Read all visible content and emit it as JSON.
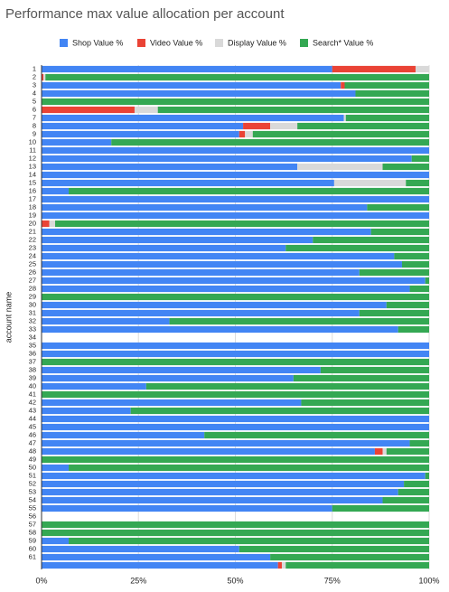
{
  "chart_data": {
    "type": "stacked-barh",
    "title": "Performance max value allocation per account",
    "y_label": "account name",
    "categories": [
      "1",
      "2",
      "3",
      "4",
      "5",
      "6",
      "7",
      "8",
      "9",
      "10",
      "11",
      "12",
      "13",
      "14",
      "15",
      "16",
      "17",
      "18",
      "19",
      "20",
      "21",
      "22",
      "23",
      "24",
      "25",
      "26",
      "27",
      "28",
      "29",
      "30",
      "31",
      "32",
      "33",
      "34",
      "35",
      "36",
      "37",
      "38",
      "39",
      "40",
      "41",
      "42",
      "43",
      "44",
      "45",
      "46",
      "47",
      "48",
      "49",
      "50",
      "51",
      "52",
      "53",
      "54",
      "55",
      "56",
      "57",
      "58",
      "59",
      "60",
      "61",
      null
    ],
    "series": [
      {
        "name": "Shop Value %",
        "color": "#4285f4",
        "values": [
          75,
          0,
          77.2,
          81,
          0,
          0,
          78,
          52,
          51,
          18,
          100,
          95.5,
          66,
          100,
          75.5,
          7,
          100,
          84,
          100,
          0,
          85,
          70,
          63,
          91,
          93,
          82,
          99,
          95,
          0,
          89,
          82,
          33,
          92,
          null,
          100,
          100,
          0,
          72,
          65,
          27,
          0,
          67,
          23,
          100,
          100,
          42,
          95,
          86,
          0,
          7,
          99,
          93.5,
          92,
          88,
          75,
          null,
          0,
          0,
          7,
          51,
          59,
          61
        ]
      },
      {
        "name": "Video Value %",
        "color": "#ea4335",
        "values": [
          21.5,
          0.5,
          1,
          0,
          0,
          24,
          0,
          7,
          1.5,
          0,
          0,
          0,
          0,
          0,
          0,
          0,
          0,
          0,
          0,
          2,
          0,
          0,
          0,
          0,
          0,
          0,
          0,
          0,
          0,
          0,
          0,
          0,
          0,
          null,
          0,
          0,
          0,
          0,
          0,
          0,
          0,
          0,
          0,
          0,
          0,
          0,
          0,
          2,
          0,
          0,
          0,
          0,
          0,
          0,
          0,
          null,
          0,
          0,
          0,
          0,
          0,
          1
        ]
      },
      {
        "name": "Display Value %",
        "color": "#d9d9d9",
        "values": [
          3.5,
          0.5,
          0,
          0,
          0,
          6,
          0.5,
          7,
          2,
          0,
          0,
          0,
          22,
          0,
          18.5,
          0,
          0,
          0,
          0,
          1.5,
          0,
          0,
          0,
          0,
          0,
          0,
          0,
          0,
          0,
          0,
          0,
          0,
          0,
          null,
          0,
          0,
          0,
          0,
          0,
          0,
          0,
          0,
          0,
          0,
          0,
          0,
          0,
          1,
          0,
          0,
          0,
          0,
          0,
          0,
          0,
          null,
          0,
          0,
          0,
          0,
          0,
          1
        ]
      },
      {
        "name": "Search* Value %",
        "color": "#34a853",
        "values": [
          0,
          99,
          21.8,
          19,
          100,
          70,
          21.5,
          34,
          45.5,
          82,
          0,
          4.5,
          12,
          0,
          6,
          93,
          0,
          16,
          0,
          96.5,
          15,
          30,
          37,
          9,
          7,
          18,
          1,
          5,
          100,
          11,
          18,
          67,
          8,
          null,
          0,
          0,
          100,
          28,
          35,
          73,
          100,
          33,
          77,
          0,
          0,
          58,
          5,
          11,
          100,
          93,
          1,
          6.5,
          8,
          12,
          25,
          null,
          100,
          100,
          93,
          49,
          41,
          37
        ]
      }
    ],
    "xlim": [
      0,
      100
    ],
    "xticks": [
      {
        "value": 0,
        "label": "0%"
      },
      {
        "value": 25,
        "label": "25%"
      },
      {
        "value": 50,
        "label": "50%"
      },
      {
        "value": 75,
        "label": "75%"
      },
      {
        "value": 100,
        "label": "100%"
      }
    ],
    "grid": true
  }
}
